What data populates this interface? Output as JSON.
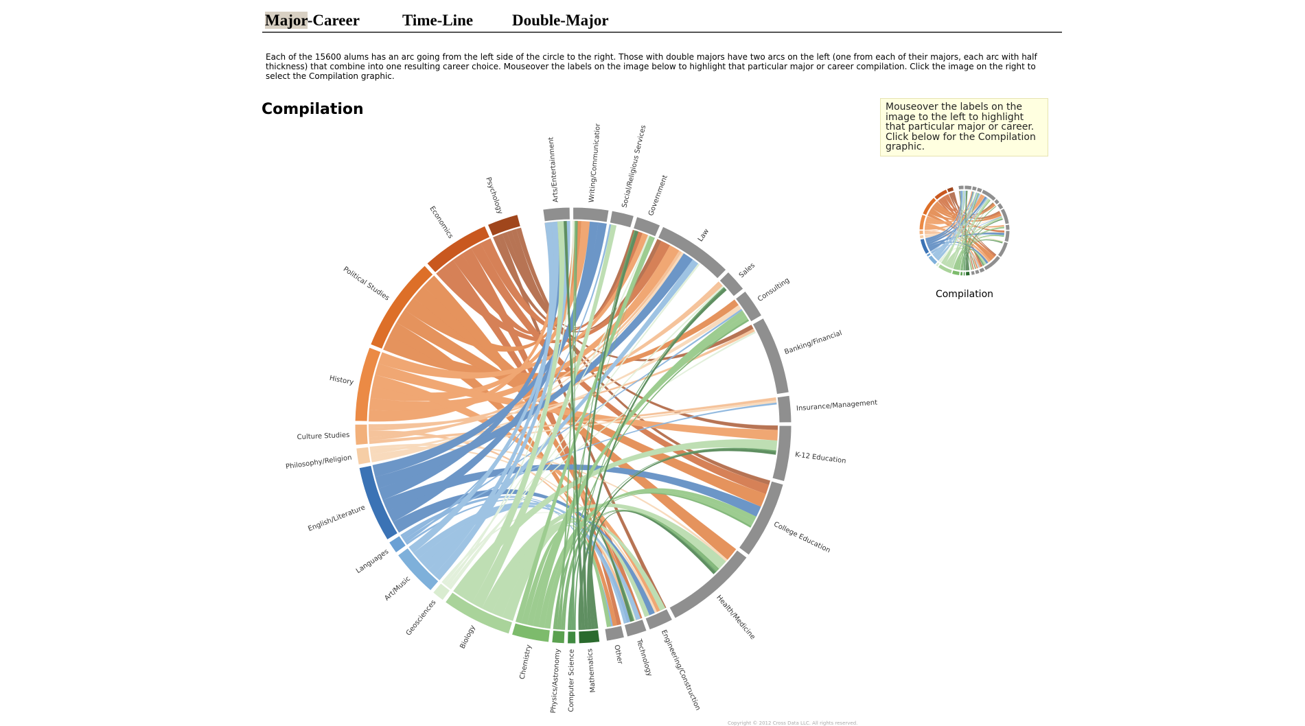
{
  "nav": {
    "tabs": [
      {
        "label_hl": "Major",
        "label_rest": "-Career",
        "active": true
      },
      {
        "label": "Time-Line"
      },
      {
        "label": "Double-Major"
      }
    ]
  },
  "intro": "Each of the 15600 alums has an arc going from the left side of the circle to the right. Those with double majors have two arcs on the left (one from each of their majors, each arc with half thickness) that combine into one resulting career choice. Mouseover the labels on the image below to highlight that particular major or career compilation. Click the image on the right to select the Compilation graphic.",
  "page_title": "Compilation",
  "help_text": "Mouseover the labels on the image to the left to highlight that particular major or career. Click below for the Compilation graphic.",
  "thumbnail_label": "Compilation",
  "colors": {
    "blue": "#3a78b6",
    "orange": "#e07b2e",
    "green": "#6aa85a",
    "career_gray": "#8f8f8f"
  },
  "majors": [
    {
      "name": "Psychology",
      "color": "#a0461c",
      "value": 1.5
    },
    {
      "name": "Economics",
      "color": "#c9581f",
      "value": 3.3
    },
    {
      "name": "Political Studies",
      "color": "#dd6f28",
      "value": 4.6
    },
    {
      "name": "History",
      "color": "#eb8a45",
      "value": 3.6
    },
    {
      "name": "Culture Studies",
      "color": "#f2b07a",
      "value": 1.0
    },
    {
      "name": "Philosophy/Religion",
      "color": "#f6cea6",
      "value": 0.8
    },
    {
      "name": "English/Literature",
      "color": "#3b73b5",
      "value": 3.7
    },
    {
      "name": "Languages",
      "color": "#6aa0d4",
      "value": 0.6
    },
    {
      "name": "Art/Music",
      "color": "#7eb0da",
      "value": 2.3
    },
    {
      "name": "Geosciences",
      "color": "#d9ecd0",
      "value": 0.6
    },
    {
      "name": "Biology",
      "color": "#a9d39a",
      "value": 3.4
    },
    {
      "name": "Chemistry",
      "color": "#7dbb6c",
      "value": 1.8
    },
    {
      "name": "Physics/Astronomy",
      "color": "#5ba150",
      "value": 0.6
    },
    {
      "name": "Computer Science",
      "color": "#3f8a40",
      "value": 0.4
    },
    {
      "name": "Mathematics",
      "color": "#2a6a2d",
      "value": 1.0
    }
  ],
  "careers": [
    {
      "name": "Arts/Entertainment",
      "value": 1.2
    },
    {
      "name": "Writing/Communication",
      "value": 1.6
    },
    {
      "name": "Social/Religious Services",
      "value": 1.0
    },
    {
      "name": "Government",
      "value": 1.1
    },
    {
      "name": "Law",
      "value": 3.4
    },
    {
      "name": "Sales",
      "value": 1.0
    },
    {
      "name": "Consulting",
      "value": 1.3
    },
    {
      "name": "Banking/Financial",
      "value": 3.5
    },
    {
      "name": "Insurance/Management",
      "value": 1.2
    },
    {
      "name": "K-12 Education",
      "value": 2.5
    },
    {
      "name": "College Education",
      "value": 3.5
    },
    {
      "name": "Health/Medicine",
      "value": 4.2
    },
    {
      "name": "Engineering/Construction",
      "value": 1.1
    },
    {
      "name": "Technology",
      "value": 0.9
    },
    {
      "name": "Other",
      "value": 0.8
    }
  ],
  "copyright": "Copyright © 2012 Cross Data LLC. All rights reserved."
}
